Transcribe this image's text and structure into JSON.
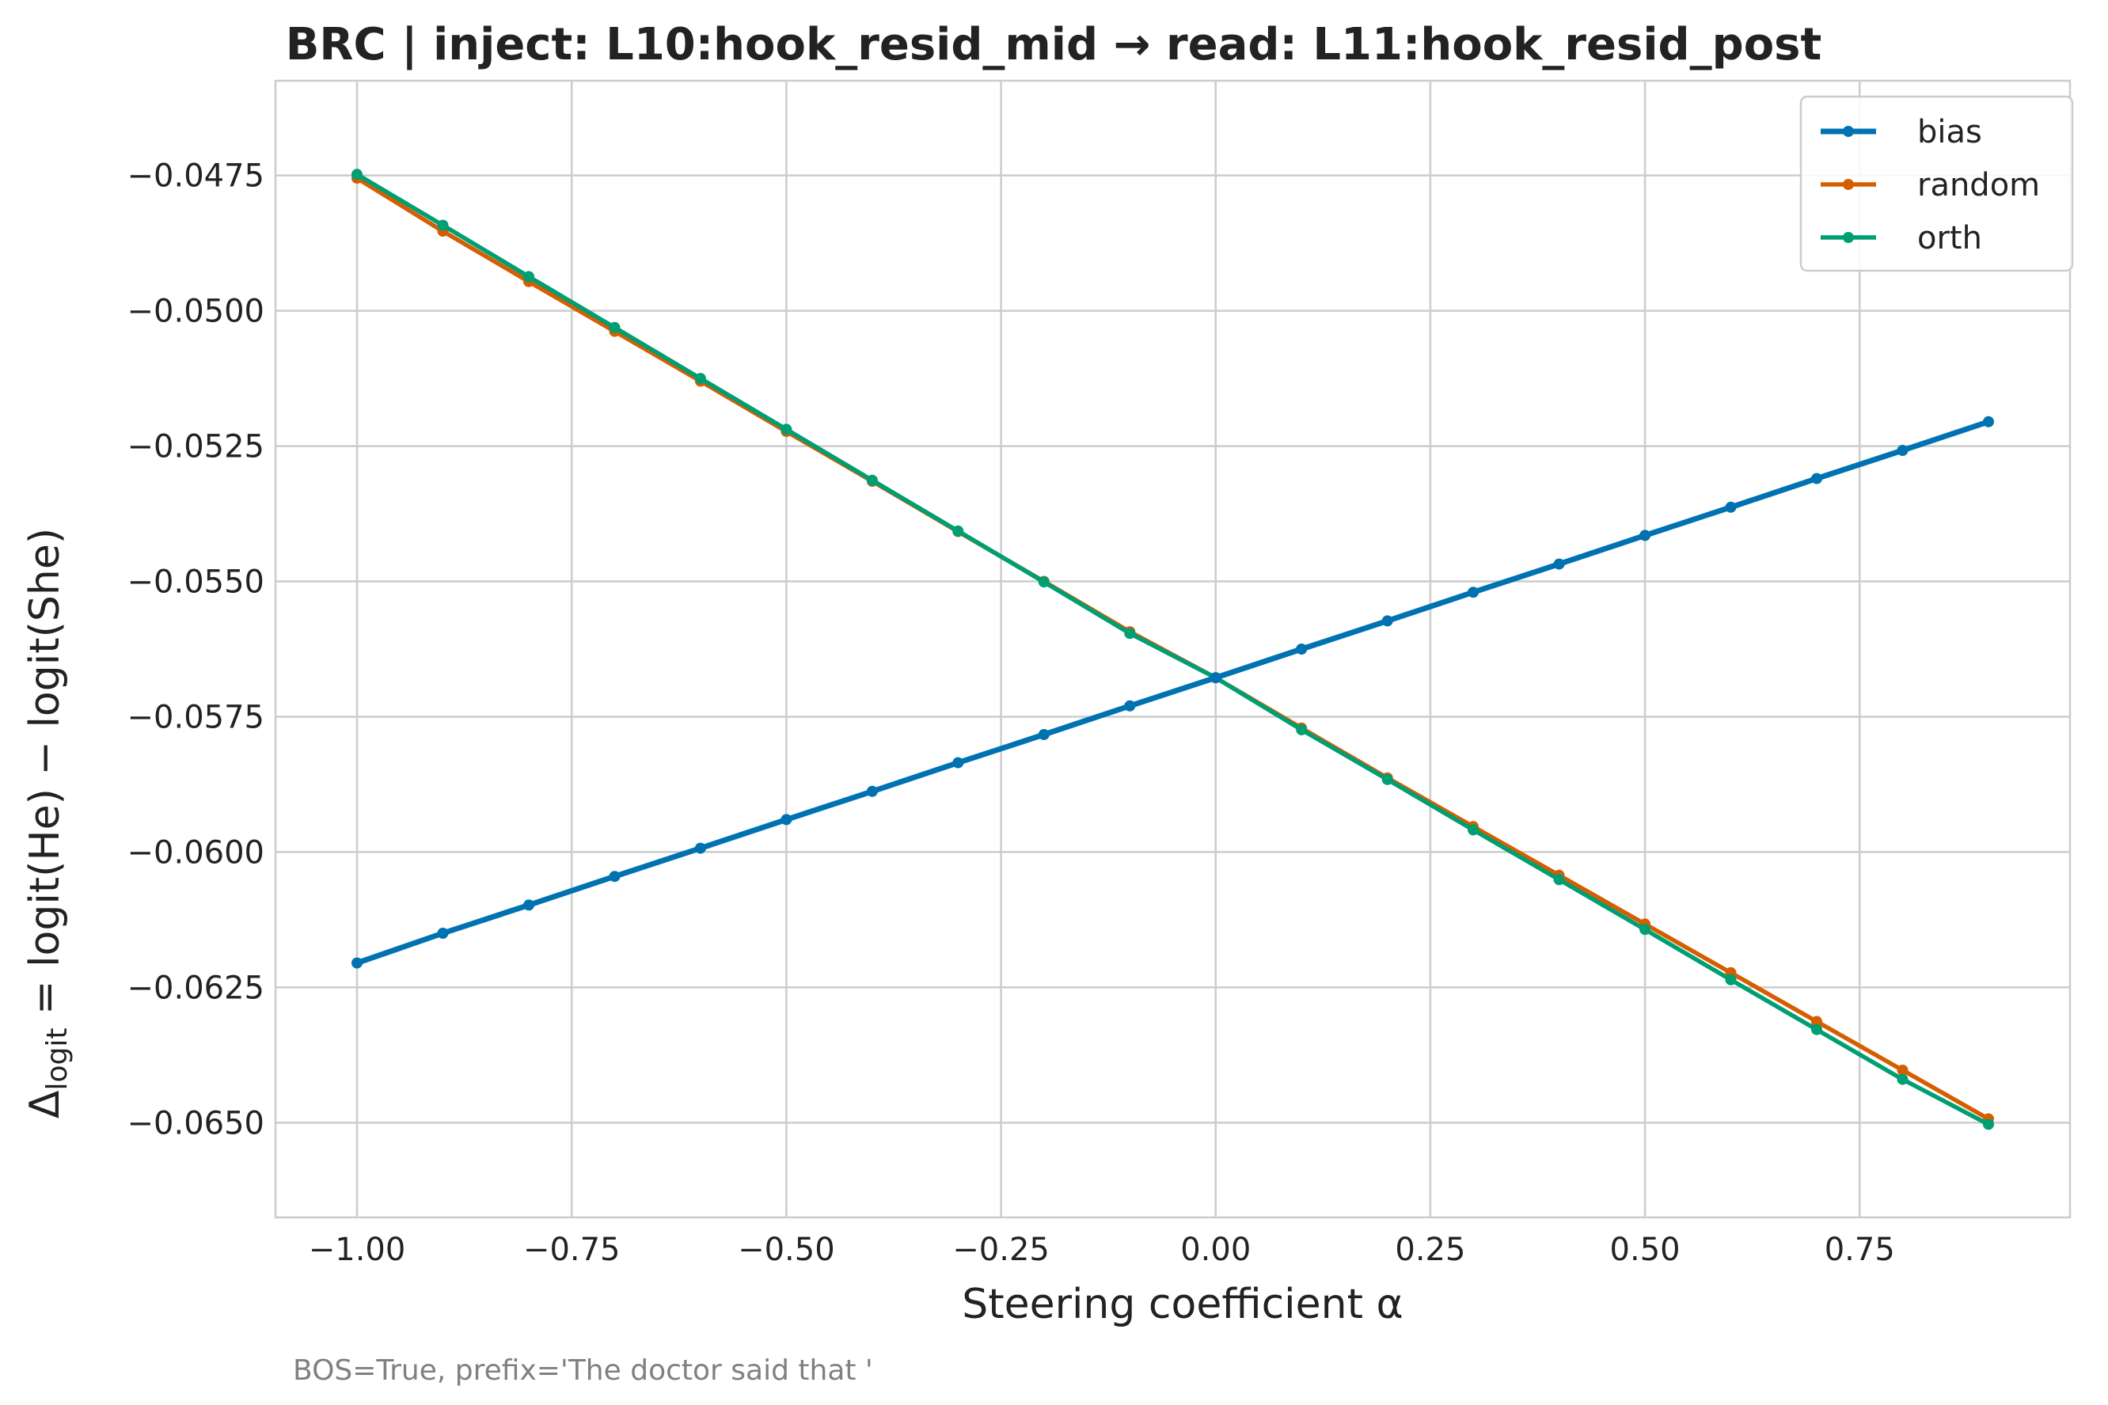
{
  "chart_data": {
    "type": "line",
    "title": "BRC | inject: L10:hook_resid_mid → read: L11:hook_resid_post",
    "xlabel": "Steering coefficient α",
    "ylabel_parts": {
      "delta": "Δ",
      "sub": "logit",
      "rest": " = logit(He) − logit(She)"
    },
    "footnote": "BOS=True, prefix='The doctor said that '",
    "xlim": [
      -1.095,
      0.995
    ],
    "ylim": [
      -0.06675,
      -0.04575
    ],
    "xticks": [
      -1.0,
      -0.75,
      -0.5,
      -0.25,
      0.0,
      0.25,
      0.5,
      0.75
    ],
    "xtick_labels": [
      "−1.00",
      "−0.75",
      "−0.50",
      "−0.25",
      "0.00",
      "0.25",
      "0.50",
      "0.75"
    ],
    "yticks": [
      -0.0475,
      -0.05,
      -0.0525,
      -0.055,
      -0.0575,
      -0.06,
      -0.0625,
      -0.065
    ],
    "ytick_labels": [
      "−0.0475",
      "−0.0500",
      "−0.0525",
      "−0.0550",
      "−0.0575",
      "−0.0600",
      "−0.0625",
      "−0.0650"
    ],
    "grid": true,
    "legend_position": "top-right",
    "x": [
      -1.0,
      -0.9,
      -0.8,
      -0.7,
      -0.6,
      -0.5,
      -0.4,
      -0.3,
      -0.2,
      -0.1,
      0.0,
      0.1,
      0.2,
      0.3,
      0.4,
      0.5,
      0.6,
      0.7,
      0.8,
      0.9
    ],
    "series": [
      {
        "name": "bias",
        "color": "#0072b2",
        "values": [
          -0.06205,
          -0.0615,
          -0.06098,
          -0.06045,
          -0.05993,
          -0.0594,
          -0.05888,
          -0.05835,
          -0.05783,
          -0.0573,
          -0.05678,
          -0.05625,
          -0.05573,
          -0.0552,
          -0.05468,
          -0.05415,
          -0.05363,
          -0.0531,
          -0.05258,
          -0.05205
        ]
      },
      {
        "name": "random",
        "color": "#d55e00",
        "values": [
          -0.04755,
          -0.04853,
          -0.04946,
          -0.05038,
          -0.0513,
          -0.05223,
          -0.05315,
          -0.05408,
          -0.055,
          -0.05593,
          -0.05678,
          -0.05771,
          -0.05863,
          -0.05953,
          -0.06043,
          -0.06133,
          -0.06223,
          -0.06313,
          -0.06403,
          -0.06493
        ]
      },
      {
        "name": "orth",
        "color": "#009e73",
        "values": [
          -0.04748,
          -0.04842,
          -0.04937,
          -0.05031,
          -0.05125,
          -0.05219,
          -0.05313,
          -0.05407,
          -0.05501,
          -0.05596,
          -0.05678,
          -0.05774,
          -0.05866,
          -0.05959,
          -0.06051,
          -0.06143,
          -0.06236,
          -0.06328,
          -0.0642,
          -0.06503
        ]
      }
    ]
  }
}
